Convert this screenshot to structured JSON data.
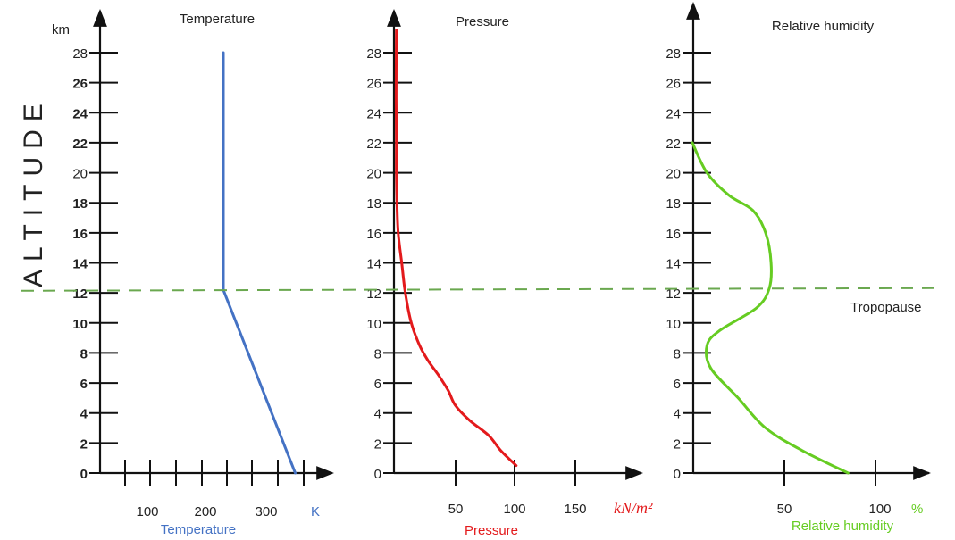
{
  "figure": {
    "y_axis_word": "ALTITUDE",
    "tropopause_label": "Tropopause",
    "tropopause_altitude_km": 12.2,
    "tropopause_color": "#6aa84f"
  },
  "chart_data": [
    {
      "type": "line",
      "title": "Temperature",
      "ylabel": "km",
      "xlabel": "Temperature",
      "x_unit": "K",
      "x_ticks": [
        "100",
        "200",
        "300"
      ],
      "y_ticks": [
        "0",
        "2",
        "4",
        "6",
        "8",
        "10",
        "12",
        "14",
        "16",
        "18",
        "20",
        "22",
        "24",
        "26",
        "28"
      ],
      "ylim": [
        0,
        28
      ],
      "color": "#4472c4",
      "label_color": "#4472c4",
      "series": [
        {
          "x": [
            335,
            220,
            220
          ],
          "y": [
            0,
            12.2,
            28
          ]
        }
      ]
    },
    {
      "type": "line",
      "title": "Pressure",
      "xlabel": "Pressure",
      "x_unit": "kN/m²",
      "x_ticks": [
        "50",
        "100",
        "150"
      ],
      "y_ticks": [
        "0",
        "2",
        "4",
        "6",
        "8",
        "10",
        "12",
        "14",
        "16",
        "18",
        "20",
        "22",
        "24",
        "26",
        "28"
      ],
      "ylim": [
        0,
        28
      ],
      "color": "#e31a1c",
      "label_color": "#e31a1c",
      "series": [
        {
          "x": [
            101,
            88,
            78,
            62,
            50,
            44,
            36,
            27,
            20,
            13,
            8,
            5,
            2,
            1,
            0.5,
            0.5,
            0.3,
            0.5
          ],
          "y": [
            0.5,
            1.5,
            2.5,
            3.5,
            4.5,
            5.5,
            6.5,
            7.5,
            8.5,
            10,
            12,
            14,
            16,
            18,
            20,
            22,
            25,
            29.5
          ]
        }
      ]
    },
    {
      "type": "line",
      "title": "Relative humidity",
      "xlabel": "Relative humidity",
      "x_unit": "%",
      "x_ticks": [
        "50",
        "100"
      ],
      "y_ticks": [
        "0",
        "2",
        "4",
        "6",
        "8",
        "10",
        "12",
        "14",
        "16",
        "18",
        "20",
        "22",
        "24",
        "26",
        "28"
      ],
      "ylim": [
        0,
        28
      ],
      "color": "#66cc22",
      "label_color": "#66cc22",
      "series": [
        {
          "x": [
            85,
            60,
            40,
            25,
            10,
            8,
            15,
            35,
            42,
            43,
            40,
            33,
            20,
            8,
            0
          ],
          "y": [
            0,
            1.5,
            3,
            5,
            7,
            8.5,
            9.5,
            11,
            12.3,
            14,
            16,
            17.5,
            18.5,
            20,
            22
          ]
        }
      ]
    }
  ]
}
